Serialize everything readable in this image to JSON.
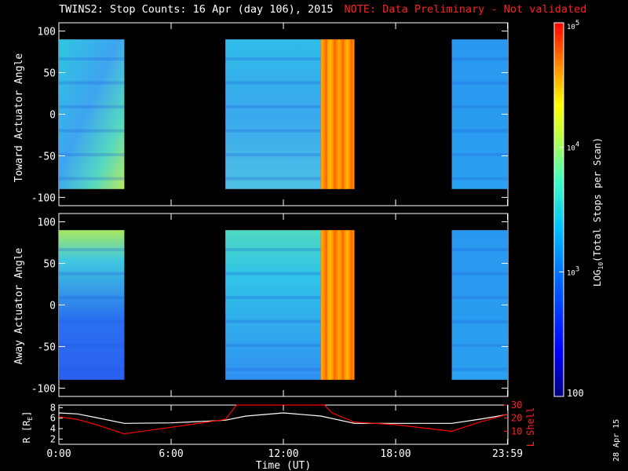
{
  "title": "TWINS2: Stop Counts: 16 Apr (day 106), 2015",
  "note": "NOTE: Data Preliminary - Not validated",
  "date_stamp": "28 Apr 15",
  "colors": {
    "background": "#000000",
    "axis": "#ffffff",
    "note": "#ff2020",
    "l_shell_line": "#ff0000",
    "r_line": "#ffffff"
  },
  "chart_data": [
    {
      "type": "heatmap",
      "ylabel": "Toward Actuator Angle",
      "yticks": [
        100,
        50,
        0,
        -50,
        -100
      ],
      "ylim": [
        -110,
        110
      ],
      "xlim_hours": [
        0,
        24
      ],
      "data_extent_y": [
        -90,
        90
      ],
      "blocks": [
        {
          "start_hour": 0.0,
          "end_hour": 3.5,
          "level": "low-mid (~10^2.8-10^3.5)"
        },
        {
          "start_hour": 8.9,
          "end_hour": 14.0,
          "level": "mid (~10^3.2)"
        },
        {
          "start_hour": 14.0,
          "end_hour": 15.8,
          "level": "high (~10^4.6)"
        },
        {
          "start_hour": 21.0,
          "end_hour": 24.0,
          "level": "low (~10^3)"
        }
      ]
    },
    {
      "type": "heatmap",
      "ylabel": "Away Actuator Angle",
      "yticks": [
        100,
        50,
        0,
        -50,
        -100
      ],
      "ylim": [
        -110,
        110
      ],
      "xlim_hours": [
        0,
        24
      ],
      "data_extent_y": [
        -90,
        90
      ],
      "blocks": [
        {
          "start_hour": 0.0,
          "end_hour": 3.5,
          "level": "low-mid (~10^3)"
        },
        {
          "start_hour": 8.9,
          "end_hour": 14.0,
          "level": "mid (~10^3.2)"
        },
        {
          "start_hour": 14.0,
          "end_hour": 15.8,
          "level": "high (~10^4.6)"
        },
        {
          "start_hour": 21.0,
          "end_hour": 24.0,
          "level": "low (~10^3)"
        }
      ]
    },
    {
      "type": "line",
      "ylabel": "R [R",
      "ylabel_sub": "E",
      "ylabel_end": "]",
      "ylabel_right": "L Shell",
      "y_left_ticks": [
        8,
        6,
        4,
        2
      ],
      "y_left_lim": [
        1,
        8.5
      ],
      "y_right_ticks": [
        30,
        20,
        10
      ],
      "y_right_lim": [
        0,
        30
      ],
      "x_ticks": [
        "0:00",
        "6:00",
        "12:00",
        "18:00",
        "23:59"
      ],
      "x_tick_hours": [
        0,
        6,
        12,
        18,
        23.98
      ],
      "xlabel": "Time (UT)",
      "series": [
        {
          "axis": "left",
          "color": "#ffffff",
          "x": [
            0,
            1,
            2,
            3.5,
            6,
            8.9,
            10,
            12,
            14,
            15.8,
            18,
            21,
            22.5,
            24
          ],
          "y": [
            7.0,
            6.8,
            6.1,
            5.0,
            5.1,
            5.6,
            6.4,
            7.0,
            6.4,
            5.0,
            5.0,
            5.0,
            5.8,
            6.7
          ]
        },
        {
          "axis": "right",
          "color": "#ff0000",
          "x": [
            0,
            1,
            2,
            3.5,
            6,
            8.9,
            9.5,
            14.2,
            14.6,
            15.8,
            18,
            21,
            22.5,
            24
          ],
          "y": [
            21,
            19,
            15,
            8,
            13,
            19,
            30,
            30,
            24,
            17,
            15,
            10,
            17,
            23
          ]
        }
      ]
    },
    {
      "type": "colorbar",
      "label": "LOG",
      "label_sub": "10",
      "label_end": "(Total Stops per Scan)",
      "tick_labels": [
        {
          "base": "10",
          "exp": "5",
          "value": 100000
        },
        {
          "base": "10",
          "exp": "4",
          "value": 10000
        },
        {
          "base": "10",
          "exp": "3",
          "value": 1000
        },
        {
          "base": "100",
          "exp": "",
          "value": 100
        }
      ],
      "scale": "log",
      "range": [
        100,
        100000
      ]
    }
  ]
}
